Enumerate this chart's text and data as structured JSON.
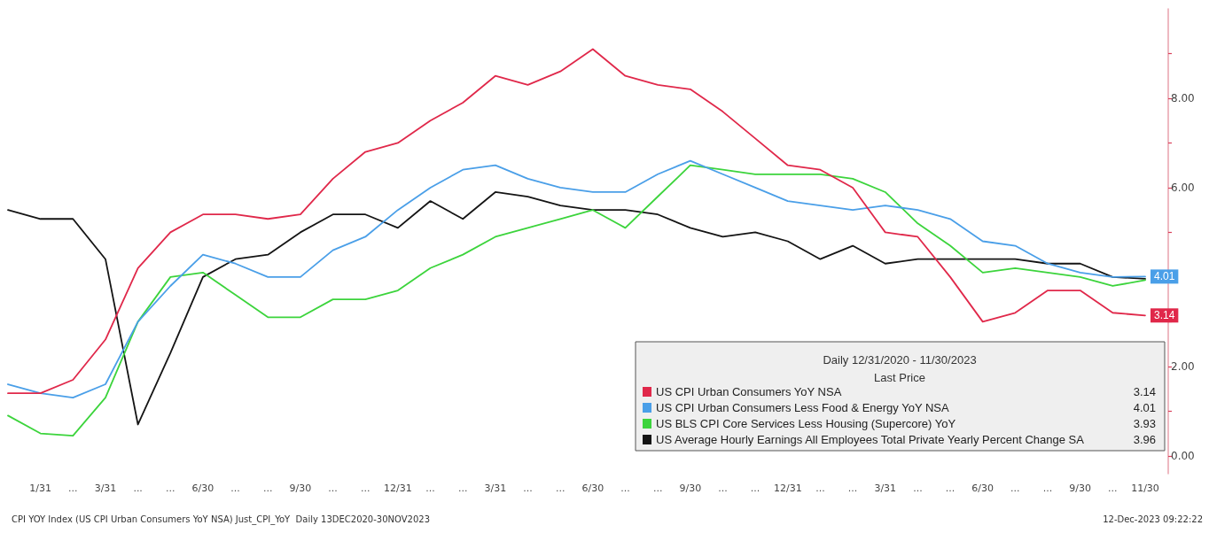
{
  "chart_data": {
    "type": "line",
    "categories": [
      null,
      "1/31",
      "...",
      "3/31",
      "...",
      "...",
      "6/30",
      "...",
      "...",
      "9/30",
      "...",
      "...",
      "12/31",
      "...",
      "...",
      "3/31",
      "...",
      "...",
      "6/30",
      "...",
      "...",
      "9/30",
      "...",
      "...",
      "12/31",
      "...",
      "...",
      "3/31",
      "...",
      "...",
      "6/30",
      "...",
      "...",
      "9/30",
      "...",
      "11/30"
    ],
    "series": [
      {
        "name": "US CPI Urban Consumers YoY NSA",
        "color": "#e0284a",
        "values": [
          1.4,
          1.4,
          1.7,
          2.6,
          4.2,
          5.0,
          5.4,
          5.4,
          5.3,
          5.4,
          6.2,
          6.8,
          7.0,
          7.5,
          7.9,
          8.5,
          8.3,
          8.6,
          9.1,
          8.5,
          8.3,
          8.2,
          7.7,
          7.1,
          6.5,
          6.4,
          6.0,
          5.0,
          4.9,
          4.0,
          3.0,
          3.2,
          3.7,
          3.7,
          3.2,
          3.14
        ],
        "value_labels": [
          null,
          null,
          null,
          null,
          null,
          null,
          null,
          null,
          null,
          null,
          null,
          null,
          null,
          null,
          null,
          null,
          null,
          null,
          null,
          null,
          null,
          null,
          null,
          null,
          null,
          null,
          null,
          null,
          null,
          null,
          null,
          null,
          null,
          null,
          null,
          "3.14"
        ]
      },
      {
        "name": "US CPI Urban Consumers Less Food & Energy YoY NSA",
        "color": "#4a9fe8",
        "values": [
          1.6,
          1.4,
          1.3,
          1.6,
          3.0,
          3.8,
          4.5,
          4.3,
          4.0,
          4.0,
          4.6,
          4.9,
          5.5,
          6.0,
          6.4,
          6.5,
          6.2,
          6.0,
          5.9,
          5.9,
          6.3,
          6.6,
          6.3,
          6.0,
          5.7,
          5.6,
          5.5,
          5.6,
          5.5,
          5.3,
          4.8,
          4.7,
          4.3,
          4.1,
          4.0,
          4.01
        ],
        "value_labels": [
          null,
          null,
          null,
          null,
          null,
          null,
          null,
          null,
          null,
          null,
          null,
          null,
          null,
          null,
          null,
          null,
          null,
          null,
          null,
          null,
          null,
          null,
          null,
          null,
          null,
          null,
          null,
          null,
          null,
          null,
          null,
          null,
          null,
          null,
          null,
          "4.01"
        ]
      },
      {
        "name": "US BLS CPI Core Services Less Housing (Supercore) YoY",
        "color": "#3cd43c",
        "values": [
          0.9,
          0.5,
          0.45,
          1.3,
          3.0,
          4.0,
          4.1,
          3.6,
          3.1,
          3.1,
          3.5,
          3.5,
          3.7,
          4.2,
          4.5,
          4.9,
          5.1,
          5.3,
          5.5,
          5.1,
          5.8,
          6.5,
          6.4,
          6.3,
          6.3,
          6.3,
          6.2,
          5.9,
          5.2,
          4.7,
          4.1,
          4.2,
          4.1,
          4.0,
          3.8,
          3.93
        ]
      },
      {
        "name": "US Average Hourly Earnings All Employees Total Private Yearly Percent Change SA",
        "color": "#141414",
        "values": [
          5.5,
          5.3,
          5.3,
          4.4,
          0.7,
          2.3,
          4.0,
          4.4,
          4.5,
          5.0,
          5.4,
          5.4,
          5.1,
          5.7,
          5.3,
          5.9,
          5.8,
          5.6,
          5.5,
          5.5,
          5.4,
          5.1,
          4.9,
          5.0,
          4.8,
          4.4,
          4.7,
          4.3,
          4.4,
          4.4,
          4.4,
          4.4,
          4.3,
          4.3,
          4.0,
          3.96
        ]
      }
    ],
    "ylim": [
      -0.4,
      10
    ],
    "yticks": [
      {
        "value": 0,
        "label": "0.00"
      },
      {
        "value": 1,
        "label": null
      },
      {
        "value": 2,
        "label": "2.00"
      },
      {
        "value": 3,
        "label": null
      },
      {
        "value": 4,
        "label": null
      },
      {
        "value": 5,
        "label": null
      },
      {
        "value": 6,
        "label": "6.00"
      },
      {
        "value": 7,
        "label": null
      },
      {
        "value": 8,
        "label": "8.00"
      },
      {
        "value": 9,
        "label": null
      }
    ],
    "legend": "bottom right",
    "legend_title": "Daily 12/31/2020 - 11/30/2023\nLast Price",
    "marker": "none",
    "line_style": "solid",
    "grid": false,
    "annotations": [
      "CPI YOY Index (US CPI Urban Consumers YoY NSA) Just_CPI_YoY  Daily 13DEC2020-30NOV2023",
      "12-Dec-2023 09:22:22",
      "3.14",
      "4.01",
      "3.93",
      "3.96"
    ]
  }
}
